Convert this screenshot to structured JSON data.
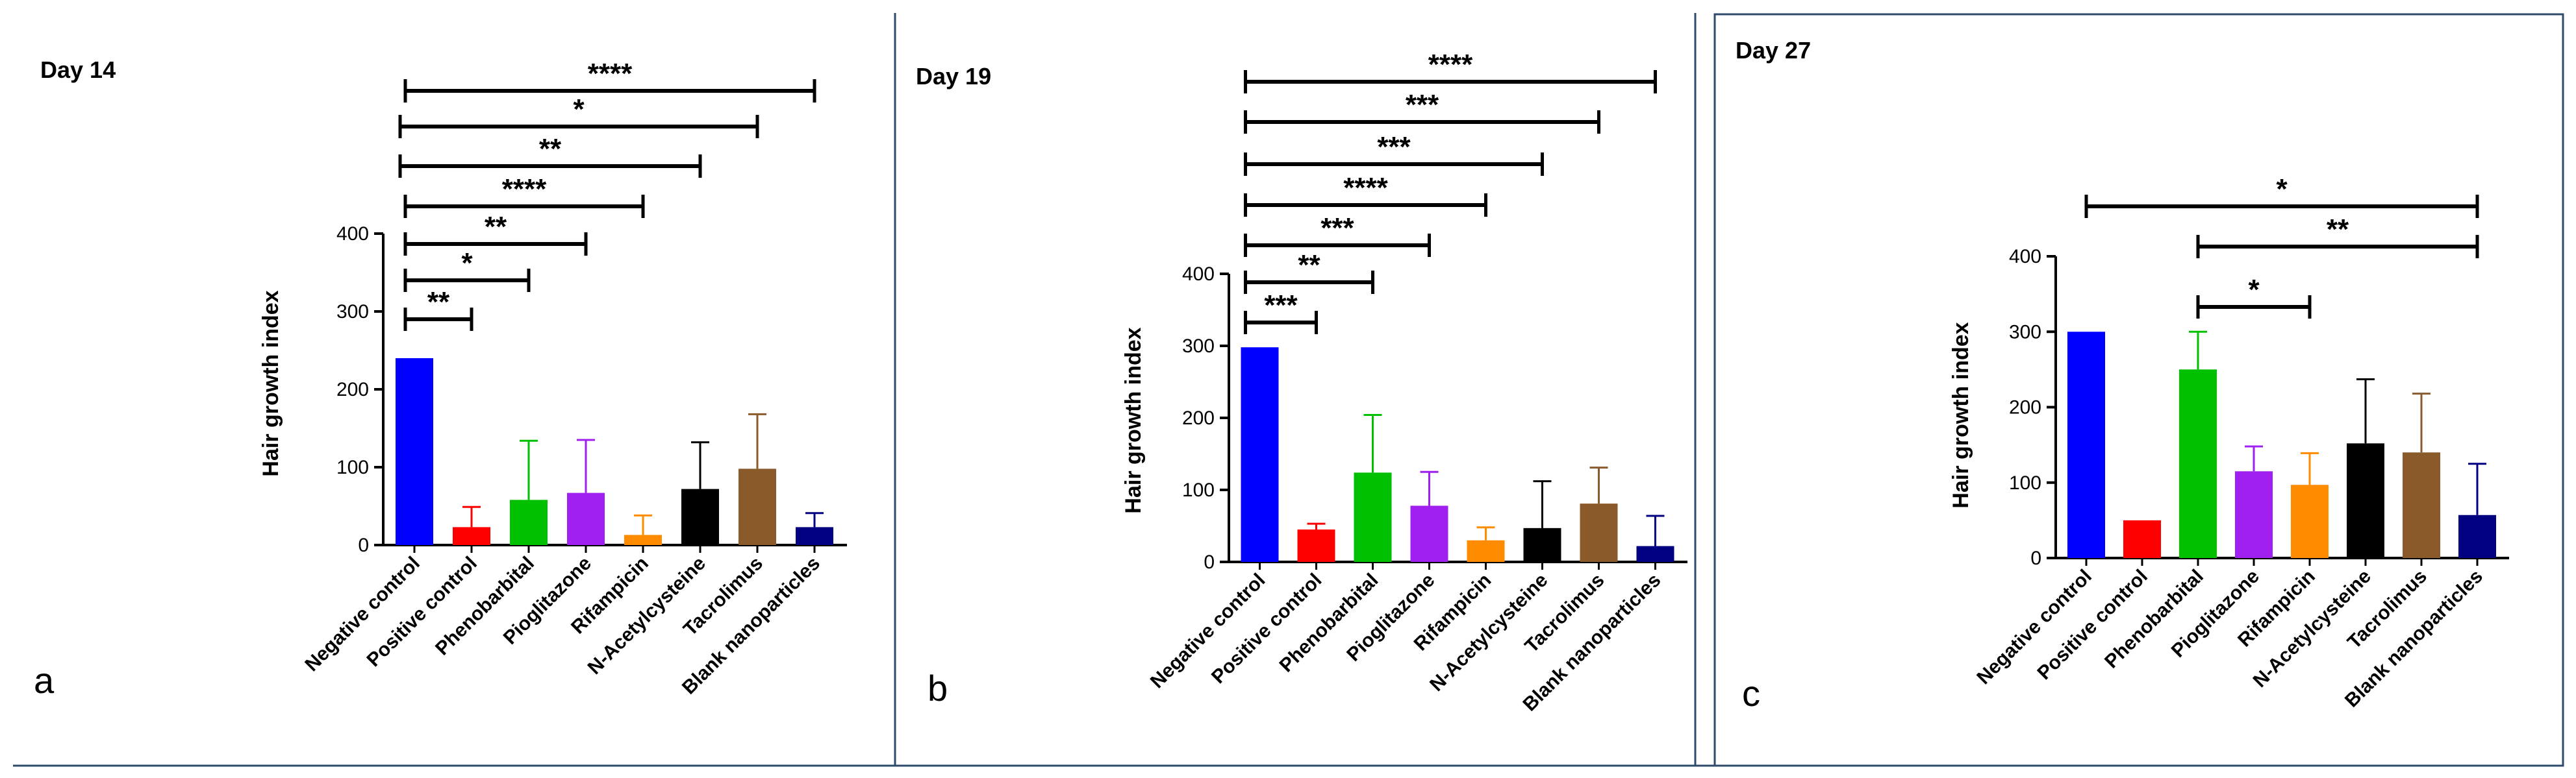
{
  "chart_data": [
    {
      "type": "bar",
      "title": "Day 14",
      "panel_label": "a",
      "ylabel": "Hair growth index",
      "ylim": [
        0,
        400
      ],
      "yticks": [
        0,
        100,
        200,
        300,
        400
      ],
      "categories": [
        "Negative control",
        "Positive control",
        "Phenobarbital",
        "Pioglitazone",
        "Rifampicin",
        "N-Acetylcysteine",
        "Tacrolimus",
        "Blank nanoparticles"
      ],
      "values": [
        240,
        23,
        58,
        67,
        13,
        72,
        98,
        23
      ],
      "errors": [
        0,
        26,
        76,
        68,
        25,
        60,
        70,
        18
      ],
      "colors": [
        "#0000ff",
        "#ff0000",
        "#00c000",
        "#a020f0",
        "#ff8c00",
        "#000000",
        "#8b5a2b",
        "#000080"
      ],
      "significance": [
        {
          "from": 0,
          "to": 1,
          "label": "**"
        },
        {
          "from": 0,
          "to": 2,
          "label": "*"
        },
        {
          "from": 0,
          "to": 3,
          "label": "**"
        },
        {
          "from": 0,
          "to": 4,
          "label": "****"
        },
        {
          "from": 0,
          "to": 5,
          "label": "**"
        },
        {
          "from": 0,
          "to": 6,
          "label": "*"
        },
        {
          "from": 0,
          "to": 7,
          "label": "****"
        }
      ]
    },
    {
      "type": "bar",
      "title": "Day 19",
      "panel_label": "b",
      "ylabel": "Hair growth index",
      "ylim": [
        0,
        400
      ],
      "yticks": [
        0,
        100,
        200,
        300,
        400
      ],
      "categories": [
        "Negative control",
        "Positive control",
        "Phenobarbital",
        "Pioglitazone",
        "Rifampicin",
        "N-Acetylcysteine",
        "Tacrolimus",
        "Blank nanoparticles"
      ],
      "values": [
        298,
        45,
        124,
        78,
        30,
        47,
        81,
        22
      ],
      "errors": [
        0,
        8,
        80,
        47,
        18,
        65,
        50,
        42
      ],
      "colors": [
        "#0000ff",
        "#ff0000",
        "#00c000",
        "#a020f0",
        "#ff8c00",
        "#000000",
        "#8b5a2b",
        "#000080"
      ],
      "significance": [
        {
          "from": 0,
          "to": 1,
          "label": "***"
        },
        {
          "from": 0,
          "to": 2,
          "label": "**"
        },
        {
          "from": 0,
          "to": 3,
          "label": "***"
        },
        {
          "from": 0,
          "to": 4,
          "label": "****"
        },
        {
          "from": 0,
          "to": 5,
          "label": "***"
        },
        {
          "from": 0,
          "to": 6,
          "label": "***"
        },
        {
          "from": 0,
          "to": 7,
          "label": "****"
        }
      ]
    },
    {
      "type": "bar",
      "title": "Day 27",
      "panel_label": "c",
      "ylabel": "Hair growth index",
      "ylim": [
        0,
        400
      ],
      "yticks": [
        0,
        100,
        200,
        300,
        400
      ],
      "categories": [
        "Negative control",
        "Positive control",
        "Phenobarbital",
        "Pioglitazone",
        "Rifampicin",
        "N-Acetylcysteine",
        "Tacrolimus",
        "Blank nanoparticles"
      ],
      "values": [
        300,
        50,
        250,
        115,
        97,
        152,
        140,
        57
      ],
      "errors": [
        0,
        0,
        50,
        33,
        42,
        85,
        78,
        68
      ],
      "colors": [
        "#0000ff",
        "#ff0000",
        "#00c000",
        "#a020f0",
        "#ff8c00",
        "#000000",
        "#8b5a2b",
        "#000080"
      ],
      "significance": [
        {
          "from": 2,
          "to": 4,
          "label": "*"
        },
        {
          "from": 2,
          "to": 7,
          "label": "**"
        },
        {
          "from": 0,
          "to": 7,
          "label": "*"
        }
      ]
    }
  ]
}
